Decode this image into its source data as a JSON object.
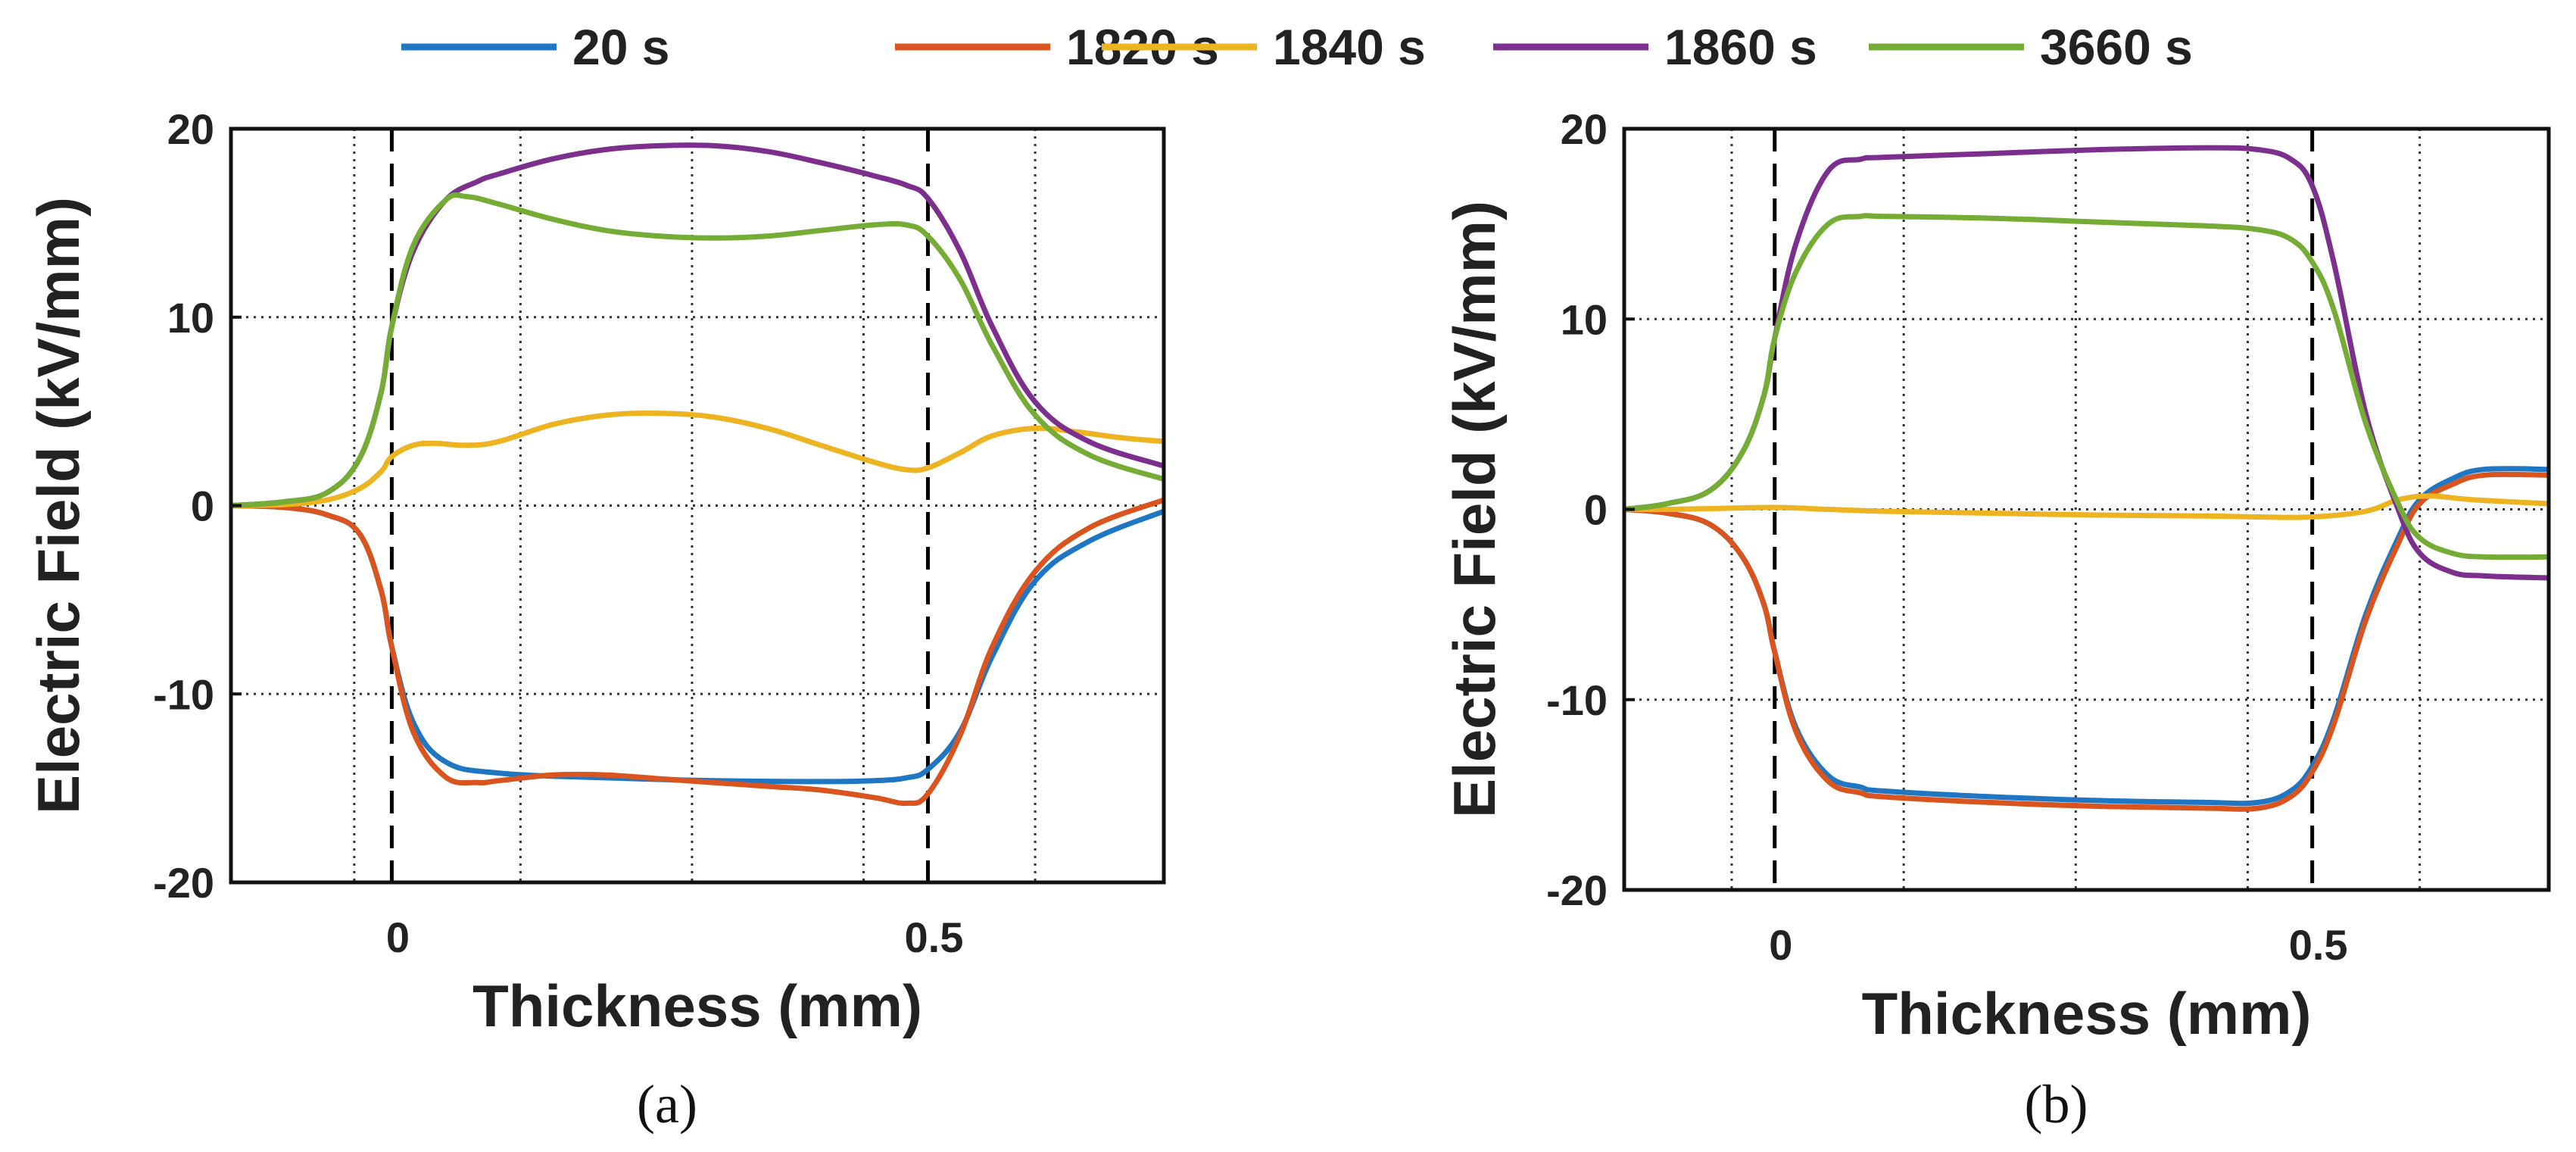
{
  "chart_data": [
    {
      "type": "line",
      "panel_label": "(a)",
      "xlabel": "Thickness (mm)",
      "ylabel": "Electric Field (kV/mm)",
      "xlim": [
        -0.15,
        0.72
      ],
      "ylim": [
        -20,
        20
      ],
      "x_ticks": [
        0,
        0.5
      ],
      "x_tick_labels": [
        "0",
        "0.5"
      ],
      "y_ticks": [
        -20,
        -10,
        0,
        10,
        20
      ],
      "y_tick_labels": [
        "-20",
        "-10",
        "0",
        "10",
        "20"
      ],
      "grid": true,
      "x_gridlines": [
        -0.035,
        0.12,
        0.28,
        0.44,
        0.6
      ],
      "y_gridlines": [
        -10,
        0,
        10
      ],
      "interface_markers": [
        0,
        0.5
      ],
      "series": [
        {
          "name": "20 s",
          "x": [
            -0.15,
            -0.1,
            -0.06,
            -0.03,
            -0.01,
            0.0,
            0.02,
            0.05,
            0.1,
            0.2,
            0.3,
            0.4,
            0.45,
            0.48,
            0.5,
            0.53,
            0.56,
            0.6,
            0.65,
            0.72
          ],
          "y": [
            0,
            -0.1,
            -0.5,
            -1.5,
            -4.5,
            -7.5,
            -11.5,
            -13.6,
            -14.2,
            -14.45,
            -14.6,
            -14.65,
            -14.6,
            -14.45,
            -14.0,
            -12.0,
            -8.0,
            -4.0,
            -1.9,
            -0.3
          ]
        },
        {
          "name": "1820 s",
          "x": [
            -0.15,
            -0.1,
            -0.06,
            -0.03,
            -0.01,
            0.0,
            0.02,
            0.05,
            0.08,
            0.1,
            0.15,
            0.2,
            0.25,
            0.3,
            0.35,
            0.4,
            0.45,
            0.48,
            0.5,
            0.53,
            0.56,
            0.6,
            0.65,
            0.72
          ],
          "y": [
            0,
            -0.1,
            -0.5,
            -1.5,
            -4.5,
            -7.5,
            -12.0,
            -14.4,
            -14.7,
            -14.6,
            -14.3,
            -14.3,
            -14.5,
            -14.7,
            -14.9,
            -15.1,
            -15.5,
            -15.8,
            -15.3,
            -12.2,
            -7.5,
            -3.5,
            -1.2,
            0.3
          ]
        },
        {
          "name": "1840 s",
          "x": [
            -0.15,
            -0.1,
            -0.06,
            -0.03,
            -0.01,
            0.0,
            0.02,
            0.04,
            0.07,
            0.1,
            0.15,
            0.2,
            0.25,
            0.3,
            0.35,
            0.4,
            0.45,
            0.48,
            0.5,
            0.53,
            0.56,
            0.6,
            0.64,
            0.68,
            0.72
          ],
          "y": [
            0,
            0.05,
            0.3,
            0.9,
            1.8,
            2.6,
            3.2,
            3.3,
            3.2,
            3.4,
            4.3,
            4.8,
            4.9,
            4.7,
            4.1,
            3.2,
            2.3,
            1.9,
            2.0,
            2.8,
            3.7,
            4.1,
            3.9,
            3.6,
            3.4
          ]
        },
        {
          "name": "1860 s",
          "x": [
            -0.15,
            -0.1,
            -0.06,
            -0.03,
            -0.01,
            0.0,
            0.02,
            0.05,
            0.08,
            0.1,
            0.15,
            0.2,
            0.25,
            0.3,
            0.35,
            0.4,
            0.45,
            0.48,
            0.5,
            0.53,
            0.56,
            0.6,
            0.65,
            0.72
          ],
          "y": [
            0,
            0.2,
            0.7,
            2.5,
            6.0,
            9.5,
            13.5,
            16.2,
            17.2,
            17.6,
            18.4,
            18.9,
            19.1,
            19.1,
            18.8,
            18.2,
            17.5,
            17.0,
            16.3,
            13.5,
            9.5,
            5.5,
            3.4,
            2.1
          ]
        },
        {
          "name": "3660 s",
          "x": [
            -0.15,
            -0.1,
            -0.06,
            -0.03,
            -0.01,
            0.0,
            0.02,
            0.05,
            0.07,
            0.1,
            0.15,
            0.2,
            0.25,
            0.3,
            0.35,
            0.4,
            0.45,
            0.48,
            0.5,
            0.53,
            0.56,
            0.6,
            0.65,
            0.72
          ],
          "y": [
            0,
            0.2,
            0.7,
            2.5,
            6.0,
            9.5,
            13.8,
            16.2,
            16.4,
            16.0,
            15.2,
            14.6,
            14.3,
            14.2,
            14.3,
            14.6,
            14.9,
            14.9,
            14.3,
            12.0,
            8.5,
            4.8,
            2.7,
            1.4
          ]
        }
      ]
    },
    {
      "type": "line",
      "panel_label": "(b)",
      "xlabel": "Thickness (mm)",
      "ylabel": "Electric Field (kV/mm)",
      "xlim": [
        -0.14,
        0.72
      ],
      "ylim": [
        -20,
        20
      ],
      "x_ticks": [
        0,
        0.5
      ],
      "x_tick_labels": [
        "0",
        "0.5"
      ],
      "y_ticks": [
        -20,
        -10,
        0,
        10,
        20
      ],
      "y_tick_labels": [
        "-20",
        "-10",
        "0",
        "10",
        "20"
      ],
      "grid": true,
      "x_gridlines": [
        -0.04,
        0.12,
        0.28,
        0.44,
        0.6
      ],
      "y_gridlines": [
        -10,
        0,
        10
      ],
      "interface_markers": [
        0,
        0.5
      ],
      "series": [
        {
          "name": "20 s",
          "x": [
            -0.14,
            -0.1,
            -0.06,
            -0.03,
            -0.01,
            0.0,
            0.02,
            0.05,
            0.08,
            0.1,
            0.2,
            0.3,
            0.4,
            0.45,
            0.48,
            0.5,
            0.52,
            0.55,
            0.58,
            0.6,
            0.63,
            0.66,
            0.72
          ],
          "y": [
            0,
            -0.2,
            -0.8,
            -2.5,
            -5.0,
            -7.5,
            -11.5,
            -14.0,
            -14.6,
            -14.8,
            -15.1,
            -15.3,
            -15.4,
            -15.4,
            -14.8,
            -13.5,
            -11.0,
            -5.5,
            -1.5,
            0.5,
            1.6,
            2.1,
            2.1
          ]
        },
        {
          "name": "1820 s",
          "x": [
            -0.14,
            -0.1,
            -0.06,
            -0.03,
            -0.01,
            0.0,
            0.02,
            0.05,
            0.08,
            0.1,
            0.2,
            0.3,
            0.4,
            0.45,
            0.48,
            0.5,
            0.52,
            0.55,
            0.58,
            0.6,
            0.63,
            0.66,
            0.72
          ],
          "y": [
            0,
            -0.2,
            -0.8,
            -2.5,
            -5.0,
            -7.5,
            -11.7,
            -14.3,
            -14.9,
            -15.1,
            -15.4,
            -15.6,
            -15.7,
            -15.7,
            -15.1,
            -13.8,
            -11.3,
            -5.8,
            -1.8,
            0.3,
            1.3,
            1.8,
            1.8
          ]
        },
        {
          "name": "1840 s",
          "x": [
            -0.14,
            -0.1,
            -0.05,
            0.0,
            0.05,
            0.1,
            0.2,
            0.3,
            0.4,
            0.45,
            0.5,
            0.55,
            0.58,
            0.61,
            0.65,
            0.72
          ],
          "y": [
            0,
            0.0,
            0.05,
            0.1,
            0.0,
            -0.1,
            -0.2,
            -0.3,
            -0.35,
            -0.4,
            -0.4,
            -0.1,
            0.5,
            0.7,
            0.5,
            0.3
          ]
        },
        {
          "name": "1860 s",
          "x": [
            -0.14,
            -0.1,
            -0.06,
            -0.03,
            -0.01,
            0.0,
            0.02,
            0.05,
            0.08,
            0.1,
            0.2,
            0.3,
            0.4,
            0.45,
            0.48,
            0.5,
            0.52,
            0.55,
            0.58,
            0.6,
            0.63,
            0.66,
            0.72
          ],
          "y": [
            0,
            0.3,
            1.0,
            3.0,
            6.0,
            9.0,
            14.0,
            17.8,
            18.4,
            18.5,
            18.7,
            18.9,
            19.0,
            18.9,
            18.4,
            17.0,
            13.0,
            5.0,
            0.0,
            -2.3,
            -3.3,
            -3.5,
            -3.6
          ]
        },
        {
          "name": "3660 s",
          "x": [
            -0.14,
            -0.1,
            -0.06,
            -0.03,
            -0.01,
            0.0,
            0.02,
            0.05,
            0.08,
            0.1,
            0.2,
            0.3,
            0.4,
            0.45,
            0.48,
            0.5,
            0.52,
            0.55,
            0.58,
            0.6,
            0.63,
            0.66,
            0.72
          ],
          "y": [
            0,
            0.3,
            1.0,
            3.0,
            6.0,
            9.0,
            12.5,
            15.0,
            15.4,
            15.4,
            15.3,
            15.1,
            14.9,
            14.7,
            14.2,
            13.0,
            10.5,
            4.5,
            0.3,
            -1.5,
            -2.3,
            -2.5,
            -2.5
          ]
        }
      ]
    }
  ],
  "legend": {
    "position": "top",
    "items": [
      {
        "label": "20 s",
        "color": "#1F77C3"
      },
      {
        "label": "1820 s",
        "color": "#D9541E"
      },
      {
        "label": "1840 s",
        "color": "#EEB321"
      },
      {
        "label": "1860 s",
        "color": "#7D2F8E"
      },
      {
        "label": "3660 s",
        "color": "#74AC35"
      }
    ]
  }
}
